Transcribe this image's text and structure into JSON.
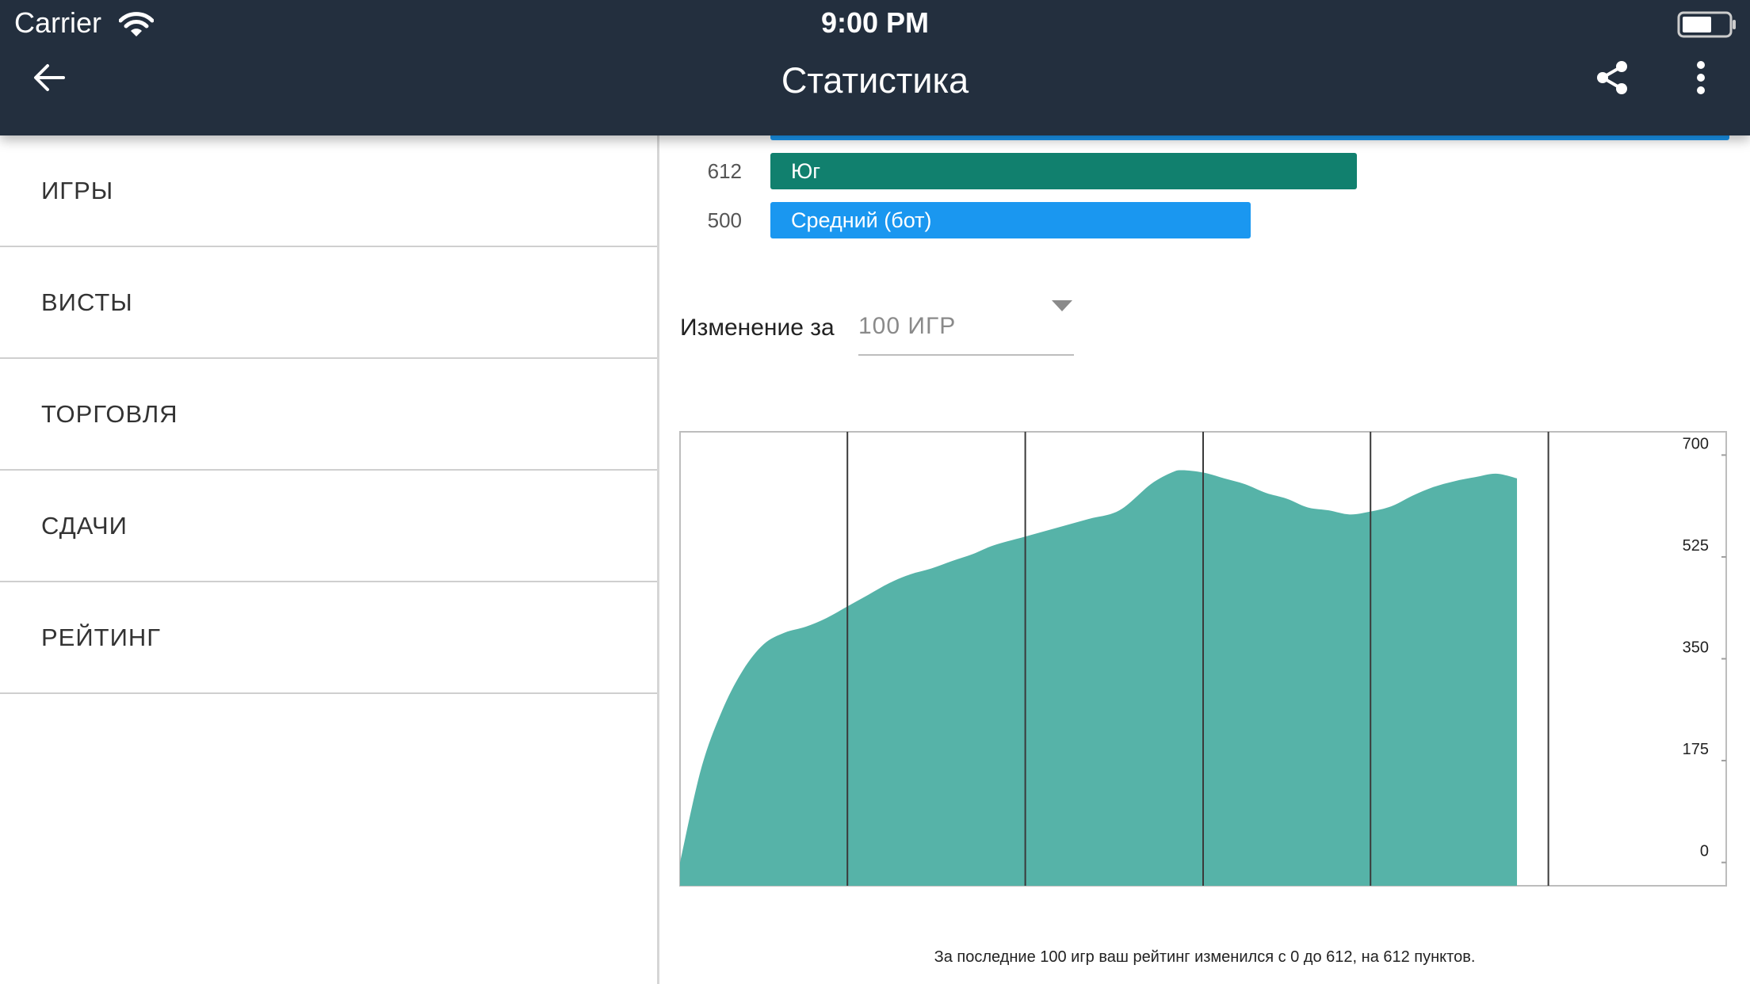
{
  "status_bar": {
    "carrier": "Carrier",
    "time": "9:00 PM"
  },
  "header": {
    "title": "Статистика"
  },
  "sidebar": {
    "items": [
      {
        "label": "ИГРЫ"
      },
      {
        "label": "ВИСТЫ"
      },
      {
        "label": "ТОРГОВЛЯ"
      },
      {
        "label": "СДАЧИ"
      },
      {
        "label": "РЕЙТИНГ"
      }
    ]
  },
  "rating_bars": [
    {
      "value": "612",
      "label": "Юг",
      "fraction": 0.61,
      "color": "#11806e"
    },
    {
      "value": "500",
      "label": "Средний (бот)",
      "fraction": 0.5,
      "color": "#1a97f0"
    }
  ],
  "colors": {
    "appbar": "#232f3e",
    "area": "#56b3a8",
    "accent": "#1a97f0"
  },
  "change": {
    "label": "Изменение за",
    "period": "100 ИГР"
  },
  "chart_data": {
    "type": "area",
    "x": [
      0,
      2,
      4,
      6,
      8,
      10,
      12,
      14,
      16,
      18,
      20,
      22,
      24,
      26,
      28,
      30,
      33,
      36,
      39,
      42,
      45,
      47,
      48,
      50,
      52,
      54,
      56,
      58,
      60,
      62,
      64,
      66,
      68,
      70,
      72,
      74,
      76,
      78,
      80
    ],
    "y": [
      0,
      160,
      260,
      330,
      375,
      395,
      405,
      420,
      440,
      460,
      480,
      495,
      505,
      518,
      530,
      545,
      560,
      575,
      590,
      605,
      650,
      670,
      674,
      670,
      660,
      650,
      635,
      625,
      610,
      605,
      598,
      603,
      612,
      630,
      645,
      655,
      662,
      668,
      660
    ],
    "xticks": [
      "0",
      "16",
      "33",
      "50",
      "66",
      "83",
      "100"
    ],
    "xtick_values": [
      0,
      16,
      33,
      50,
      66,
      83,
      100
    ],
    "yticks": [
      "0",
      "175",
      "350",
      "525",
      "700"
    ],
    "ytick_values": [
      0,
      175,
      350,
      525,
      700
    ],
    "xlim": [
      0,
      100
    ],
    "ylim": [
      -40,
      740
    ],
    "grid": "vertical"
  },
  "summary": "За последние 100 игр ваш рейтинг изменился с 0 до 612, на 612 пунктов."
}
